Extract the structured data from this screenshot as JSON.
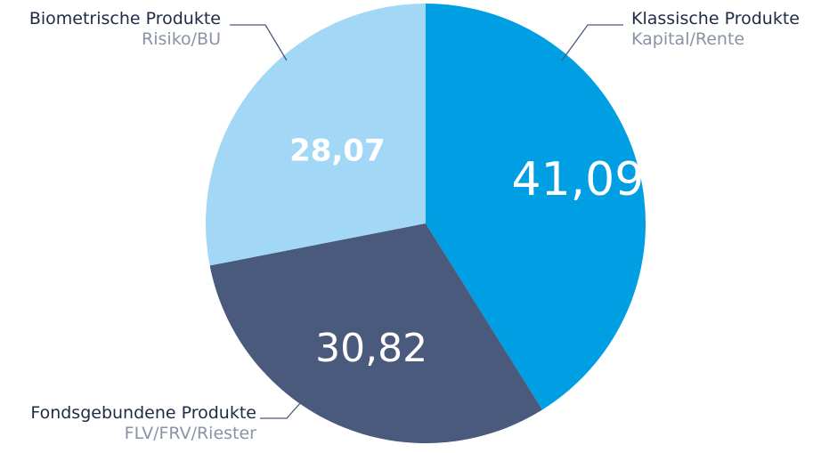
{
  "chart_data": {
    "type": "pie",
    "title": "",
    "slices": [
      {
        "label": "Klassische Produkte",
        "sublabel": "Kapital/Rente",
        "value": 41.09,
        "value_text": "41,09",
        "color": "#009fe3"
      },
      {
        "label": "Fondsgebundene Produkte",
        "sublabel": "FLV/FRV/Riester",
        "value": 30.82,
        "value_text": "30,82",
        "color": "#4a5a7c"
      },
      {
        "label": "Biometrische Produkte",
        "sublabel": "Risiko/BU",
        "value": 28.07,
        "value_text": "28,07",
        "color": "#a2d8f5"
      }
    ],
    "start_angle": "12 o'clock",
    "direction": "clockwise",
    "value_label_color": "#ffffff",
    "leader_line_color": "#4a5a7c"
  }
}
